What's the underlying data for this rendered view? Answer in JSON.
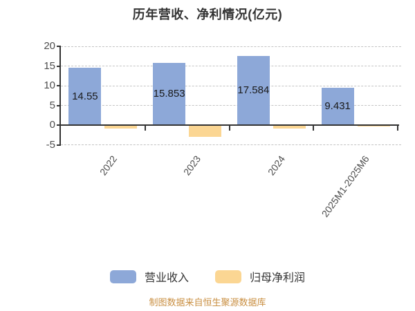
{
  "title": "历年营收、净利情况(亿元)",
  "footer": "制图数据来自恒生聚源数据库",
  "legend": [
    {
      "label": "营业收入",
      "color": "#8DA8D8"
    },
    {
      "label": "归母净利润",
      "color": "#FBD693"
    }
  ],
  "colors": {
    "revenue_bar": "#8DA8D8",
    "profit_bar": "#FBD693",
    "axis": "#333333",
    "gridline": "#C3C3C3",
    "tick_text": "#4D4D4D",
    "value_label_text": "#1A1A1A",
    "title_text": "#333333",
    "footer_text": "#C98F42"
  },
  "chart_data": {
    "type": "bar",
    "title": "历年营收、净利情况(亿元)",
    "categories": [
      "2022",
      "2023",
      "2024",
      "2025M1-2025M6"
    ],
    "series": [
      {
        "name": "营业收入",
        "color": "#8DA8D8",
        "values": [
          14.55,
          15.853,
          17.584,
          9.431
        ],
        "data_labels": [
          "14.55",
          "15.853",
          "17.584",
          "9.431"
        ]
      },
      {
        "name": "归母净利润",
        "color": "#FBD693",
        "values": [
          -0.8,
          -3.0,
          -0.9,
          -0.3
        ],
        "estimated_from_pixels": true,
        "data_labels": []
      }
    ],
    "y_ticks": [
      20,
      15,
      10,
      5,
      0,
      -5
    ],
    "ylim": [
      -5,
      20
    ],
    "xlabel": "",
    "ylabel": "",
    "grid": "horizontal-dashed",
    "legend_position": "bottom",
    "x_label_rotation_deg": 54
  }
}
